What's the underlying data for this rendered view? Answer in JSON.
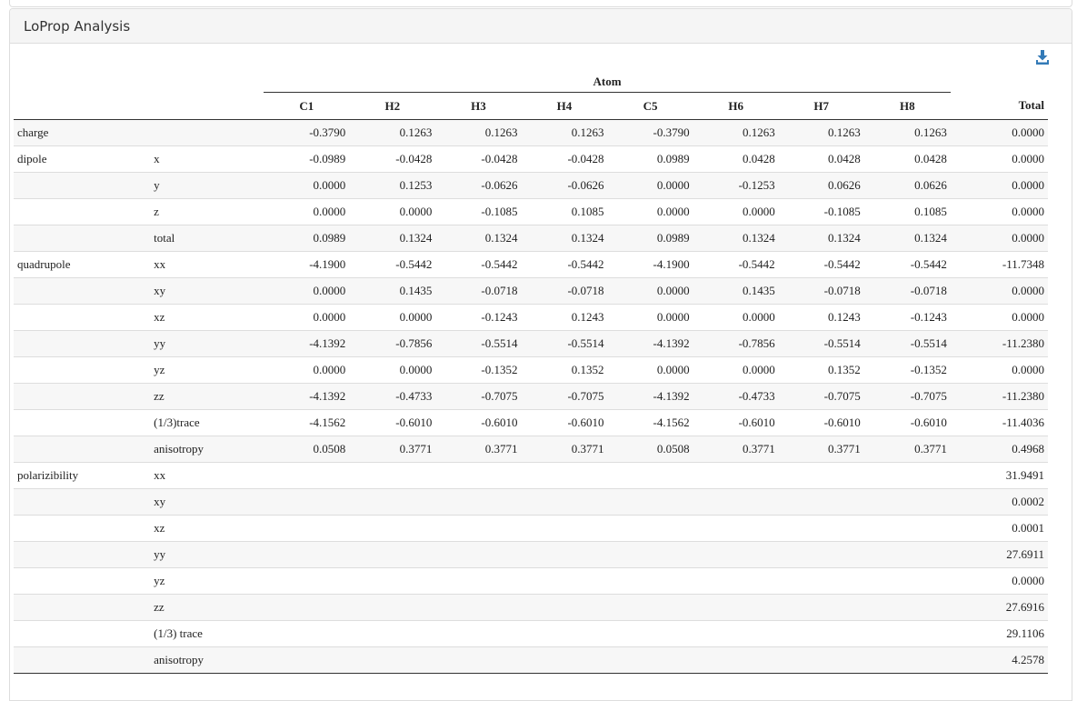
{
  "panel": {
    "title": "LoProp Analysis"
  },
  "icons": {
    "download": "download-icon"
  },
  "table": {
    "group_header": "Atom",
    "atoms": [
      "C1",
      "H2",
      "H3",
      "H4",
      "C5",
      "H6",
      "H7",
      "H8"
    ],
    "total_header": "Total",
    "rows": [
      {
        "label": "charge",
        "sub": "",
        "values": [
          "-0.3790",
          "0.1263",
          "0.1263",
          "0.1263",
          "-0.3790",
          "0.1263",
          "0.1263",
          "0.1263"
        ],
        "total": "0.0000"
      },
      {
        "label": "dipole",
        "sub": "x",
        "values": [
          "-0.0989",
          "-0.0428",
          "-0.0428",
          "-0.0428",
          "0.0989",
          "0.0428",
          "0.0428",
          "0.0428"
        ],
        "total": "0.0000"
      },
      {
        "label": "",
        "sub": "y",
        "values": [
          "0.0000",
          "0.1253",
          "-0.0626",
          "-0.0626",
          "0.0000",
          "-0.1253",
          "0.0626",
          "0.0626"
        ],
        "total": "0.0000"
      },
      {
        "label": "",
        "sub": "z",
        "values": [
          "0.0000",
          "0.0000",
          "-0.1085",
          "0.1085",
          "0.0000",
          "0.0000",
          "-0.1085",
          "0.1085"
        ],
        "total": "0.0000"
      },
      {
        "label": "",
        "sub": "total",
        "values": [
          "0.0989",
          "0.1324",
          "0.1324",
          "0.1324",
          "0.0989",
          "0.1324",
          "0.1324",
          "0.1324"
        ],
        "total": "0.0000"
      },
      {
        "label": "quadrupole",
        "sub": "xx",
        "values": [
          "-4.1900",
          "-0.5442",
          "-0.5442",
          "-0.5442",
          "-4.1900",
          "-0.5442",
          "-0.5442",
          "-0.5442"
        ],
        "total": "-11.7348"
      },
      {
        "label": "",
        "sub": "xy",
        "values": [
          "0.0000",
          "0.1435",
          "-0.0718",
          "-0.0718",
          "0.0000",
          "0.1435",
          "-0.0718",
          "-0.0718"
        ],
        "total": "0.0000"
      },
      {
        "label": "",
        "sub": "xz",
        "values": [
          "0.0000",
          "0.0000",
          "-0.1243",
          "0.1243",
          "0.0000",
          "0.0000",
          "0.1243",
          "-0.1243"
        ],
        "total": "0.0000"
      },
      {
        "label": "",
        "sub": "yy",
        "values": [
          "-4.1392",
          "-0.7856",
          "-0.5514",
          "-0.5514",
          "-4.1392",
          "-0.7856",
          "-0.5514",
          "-0.5514"
        ],
        "total": "-11.2380"
      },
      {
        "label": "",
        "sub": "yz",
        "values": [
          "0.0000",
          "0.0000",
          "-0.1352",
          "0.1352",
          "0.0000",
          "0.0000",
          "0.1352",
          "-0.1352"
        ],
        "total": "0.0000"
      },
      {
        "label": "",
        "sub": "zz",
        "values": [
          "-4.1392",
          "-0.4733",
          "-0.7075",
          "-0.7075",
          "-4.1392",
          "-0.4733",
          "-0.7075",
          "-0.7075"
        ],
        "total": "-11.2380"
      },
      {
        "label": "",
        "sub": "(1/3)trace",
        "values": [
          "-4.1562",
          "-0.6010",
          "-0.6010",
          "-0.6010",
          "-4.1562",
          "-0.6010",
          "-0.6010",
          "-0.6010"
        ],
        "total": "-11.4036"
      },
      {
        "label": "",
        "sub": "anisotropy",
        "values": [
          "0.0508",
          "0.3771",
          "0.3771",
          "0.3771",
          "0.0508",
          "0.3771",
          "0.3771",
          "0.3771"
        ],
        "total": "0.4968"
      },
      {
        "label": "polarizibility",
        "sub": "xx",
        "values": [
          "",
          "",
          "",
          "",
          "",
          "",
          "",
          ""
        ],
        "total": "31.9491"
      },
      {
        "label": "",
        "sub": "xy",
        "values": [
          "",
          "",
          "",
          "",
          "",
          "",
          "",
          ""
        ],
        "total": "0.0002"
      },
      {
        "label": "",
        "sub": "xz",
        "values": [
          "",
          "",
          "",
          "",
          "",
          "",
          "",
          ""
        ],
        "total": "0.0001"
      },
      {
        "label": "",
        "sub": "yy",
        "values": [
          "",
          "",
          "",
          "",
          "",
          "",
          "",
          ""
        ],
        "total": "27.6911"
      },
      {
        "label": "",
        "sub": "yz",
        "values": [
          "",
          "",
          "",
          "",
          "",
          "",
          "",
          ""
        ],
        "total": "0.0000"
      },
      {
        "label": "",
        "sub": "zz",
        "values": [
          "",
          "",
          "",
          "",
          "",
          "",
          "",
          ""
        ],
        "total": "27.6916"
      },
      {
        "label": "",
        "sub": "(1/3) trace",
        "values": [
          "",
          "",
          "",
          "",
          "",
          "",
          "",
          ""
        ],
        "total": "29.1106"
      },
      {
        "label": "",
        "sub": "anisotropy",
        "values": [
          "",
          "",
          "",
          "",
          "",
          "",
          "",
          ""
        ],
        "total": "4.2578"
      }
    ]
  },
  "colors": {
    "accent": "#337ab7",
    "heading_bg": "#f5f5f5",
    "border": "#dddddd",
    "stripe": "#f7f7f7"
  }
}
